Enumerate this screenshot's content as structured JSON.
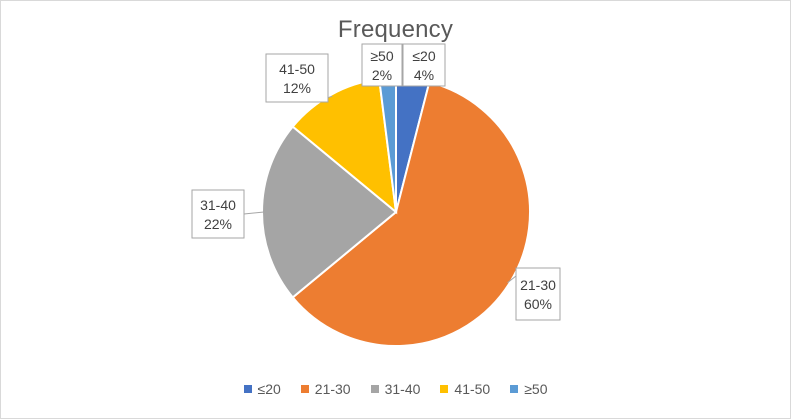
{
  "chart_data": {
    "type": "pie",
    "title": "Frequency",
    "legend_position": "bottom",
    "slices": [
      {
        "label": "≤20",
        "value": 4,
        "display": "4%",
        "color": "#4472c4"
      },
      {
        "label": "21-30",
        "value": 60,
        "display": "60%",
        "color": "#ed7d31"
      },
      {
        "label": "31-40",
        "value": 22,
        "display": "22%",
        "color": "#a5a5a5"
      },
      {
        "label": "41-50",
        "value": 12,
        "display": "12%",
        "color": "#ffc000"
      },
      {
        "label": "≥50",
        "value": 2,
        "display": "2%",
        "color": "#5b9bd5"
      }
    ]
  }
}
